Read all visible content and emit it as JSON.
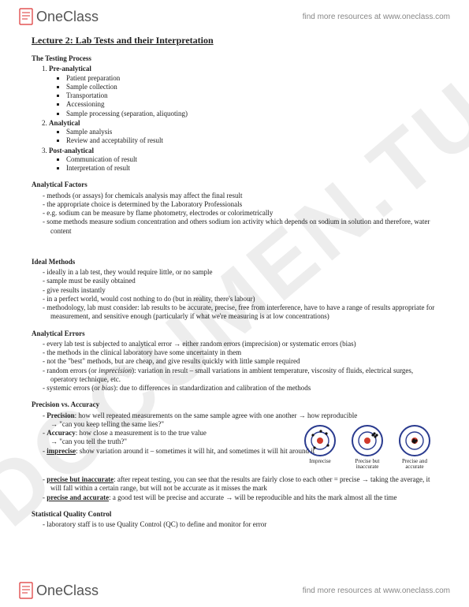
{
  "brand": {
    "name": "OneClass",
    "tagline": "find more resources at www.oneclass.com"
  },
  "watermark": "DOCUMEN.TU",
  "title": "Lecture 2: Lab Tests and their Interpretation",
  "testing_process": {
    "head": "The Testing Process",
    "items": [
      {
        "label": "Pre-analytical",
        "subs": [
          "Patient preparation",
          "Sample collection",
          "Transportation",
          "Accessioning",
          "Sample processing (separation, aliquoting)"
        ]
      },
      {
        "label": "Analytical",
        "subs": [
          "Sample analysis",
          "Review and acceptability of result"
        ]
      },
      {
        "label": "Post-analytical",
        "subs": [
          "Communication of result",
          "Interpretation of result"
        ]
      }
    ]
  },
  "analytical_factors": {
    "head": "Analytical Factors",
    "items": [
      "methods (or assays) for chemicals analysis may affect the final result",
      "the appropriate choice is determined by the Laboratory Professionals",
      "e.g. sodium can be measure by flame photometry, electrodes or colorimetrically",
      "some methods measure sodium concentration and others sodium ion activity which depends on sodium in solution and therefore, water content"
    ]
  },
  "ideal_methods": {
    "head": "Ideal Methods",
    "items": [
      "ideally in a lab test, they would require little, or no sample",
      "sample must be easily obtained",
      "give results instantly",
      "in a perfect world, would cost nothing to do (but in reality, there's labour)",
      "methodology, lab must consider: lab results to be accurate, precise, free from interference, have to have a range of results appropriate for measurement, and sensitive enough (particularly if what we're measuring is at low concentrations)"
    ]
  },
  "analytical_errors": {
    "head": "Analytical Errors",
    "items": [
      "every lab test is subjected to analytical error → either random errors (imprecision) or systematic errors (bias)",
      "the methods in the clinical laboratory have some uncertainty in them",
      "not the \"best\" methods, but are cheap, and give results quickly with little sample required"
    ],
    "random": "random errors (or <i>imprecision</i>): variation in result – small variations in ambient temperature, viscosity of fluids, electrical surges, operatory technique, etc.",
    "systemic": "systemic errors (or <i>bias</i>): due to differences in standardization and calibration of the methods"
  },
  "precision_accuracy": {
    "head": "Precision vs. Accuracy",
    "precision_label": "Precision",
    "precision_text": ": how well repeated measurements on the same sample agree with one another → how reproducible",
    "precision_quote": "→ \"can you keep telling the same lies?\"",
    "accuracy_label": "Accuracy",
    "accuracy_text": ": how close a measurement is to the true value",
    "accuracy_quote": "→ \"can you tell the truth?\"",
    "imprecise_label": "imprecise",
    "imprecise_text": ": show variation around it – sometimes it will hit, and sometimes it will hit around it",
    "precise_inacc_label": "precise but inaccurate",
    "precise_inacc_text": ": after repeat testing, you can see that the results are fairly close to each other = precise → taking the average, it will fall within a certain range, but will not be accurate as it misses the mark",
    "precise_acc_label": "precise and accurate",
    "precise_acc_text": ": a good test will be precise and accurate → will be reproducible and hits the mark almost all the time"
  },
  "targets": {
    "t1": "Imprecise",
    "t2a": "Precise but",
    "t2b": "inaccurate",
    "t3a": "Precise and",
    "t3b": "accurate",
    "ring_outer": "#2a3b8f",
    "ring_inner": "#d03a2b",
    "dot": "#111111"
  },
  "sqc": {
    "head": "Statistical Quality Control",
    "item": "laboratory staff is to use Quality Control (QC) to define and monitor for error"
  }
}
